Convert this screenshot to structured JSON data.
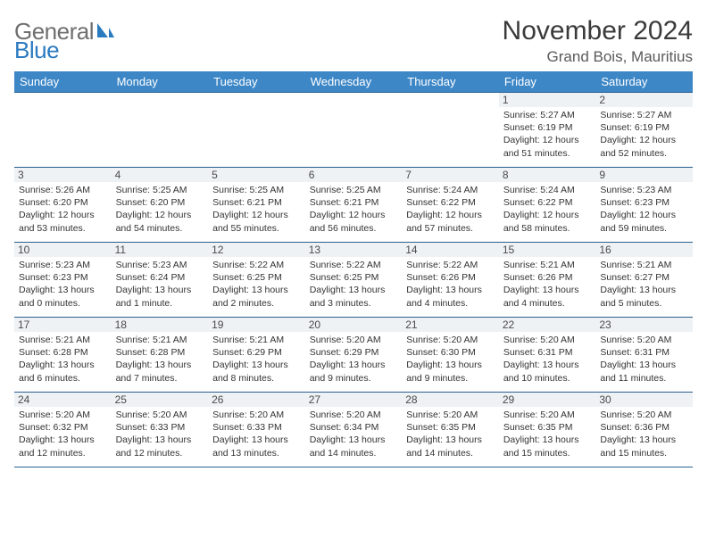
{
  "logo": {
    "word1": "General",
    "word2": "Blue"
  },
  "title": "November 2024",
  "location": "Grand Bois, Mauritius",
  "colors": {
    "header_bg": "#3d87c7",
    "header_text": "#ffffff",
    "cell_border": "#2a5f8f",
    "daynum_bg": "#eef2f5",
    "logo_gray": "#6f6f6f",
    "logo_blue": "#2a7ac0",
    "title_color": "#3a3a3a"
  },
  "day_headers": [
    "Sunday",
    "Monday",
    "Tuesday",
    "Wednesday",
    "Thursday",
    "Friday",
    "Saturday"
  ],
  "weeks": [
    [
      {
        "empty": true
      },
      {
        "empty": true
      },
      {
        "empty": true
      },
      {
        "empty": true
      },
      {
        "empty": true
      },
      {
        "num": "1",
        "l1": "Sunrise: 5:27 AM",
        "l2": "Sunset: 6:19 PM",
        "l3": "Daylight: 12 hours",
        "l4": "and 51 minutes."
      },
      {
        "num": "2",
        "l1": "Sunrise: 5:27 AM",
        "l2": "Sunset: 6:19 PM",
        "l3": "Daylight: 12 hours",
        "l4": "and 52 minutes."
      }
    ],
    [
      {
        "num": "3",
        "l1": "Sunrise: 5:26 AM",
        "l2": "Sunset: 6:20 PM",
        "l3": "Daylight: 12 hours",
        "l4": "and 53 minutes."
      },
      {
        "num": "4",
        "l1": "Sunrise: 5:25 AM",
        "l2": "Sunset: 6:20 PM",
        "l3": "Daylight: 12 hours",
        "l4": "and 54 minutes."
      },
      {
        "num": "5",
        "l1": "Sunrise: 5:25 AM",
        "l2": "Sunset: 6:21 PM",
        "l3": "Daylight: 12 hours",
        "l4": "and 55 minutes."
      },
      {
        "num": "6",
        "l1": "Sunrise: 5:25 AM",
        "l2": "Sunset: 6:21 PM",
        "l3": "Daylight: 12 hours",
        "l4": "and 56 minutes."
      },
      {
        "num": "7",
        "l1": "Sunrise: 5:24 AM",
        "l2": "Sunset: 6:22 PM",
        "l3": "Daylight: 12 hours",
        "l4": "and 57 minutes."
      },
      {
        "num": "8",
        "l1": "Sunrise: 5:24 AM",
        "l2": "Sunset: 6:22 PM",
        "l3": "Daylight: 12 hours",
        "l4": "and 58 minutes."
      },
      {
        "num": "9",
        "l1": "Sunrise: 5:23 AM",
        "l2": "Sunset: 6:23 PM",
        "l3": "Daylight: 12 hours",
        "l4": "and 59 minutes."
      }
    ],
    [
      {
        "num": "10",
        "l1": "Sunrise: 5:23 AM",
        "l2": "Sunset: 6:23 PM",
        "l3": "Daylight: 13 hours",
        "l4": "and 0 minutes."
      },
      {
        "num": "11",
        "l1": "Sunrise: 5:23 AM",
        "l2": "Sunset: 6:24 PM",
        "l3": "Daylight: 13 hours",
        "l4": "and 1 minute."
      },
      {
        "num": "12",
        "l1": "Sunrise: 5:22 AM",
        "l2": "Sunset: 6:25 PM",
        "l3": "Daylight: 13 hours",
        "l4": "and 2 minutes."
      },
      {
        "num": "13",
        "l1": "Sunrise: 5:22 AM",
        "l2": "Sunset: 6:25 PM",
        "l3": "Daylight: 13 hours",
        "l4": "and 3 minutes."
      },
      {
        "num": "14",
        "l1": "Sunrise: 5:22 AM",
        "l2": "Sunset: 6:26 PM",
        "l3": "Daylight: 13 hours",
        "l4": "and 4 minutes."
      },
      {
        "num": "15",
        "l1": "Sunrise: 5:21 AM",
        "l2": "Sunset: 6:26 PM",
        "l3": "Daylight: 13 hours",
        "l4": "and 4 minutes."
      },
      {
        "num": "16",
        "l1": "Sunrise: 5:21 AM",
        "l2": "Sunset: 6:27 PM",
        "l3": "Daylight: 13 hours",
        "l4": "and 5 minutes."
      }
    ],
    [
      {
        "num": "17",
        "l1": "Sunrise: 5:21 AM",
        "l2": "Sunset: 6:28 PM",
        "l3": "Daylight: 13 hours",
        "l4": "and 6 minutes."
      },
      {
        "num": "18",
        "l1": "Sunrise: 5:21 AM",
        "l2": "Sunset: 6:28 PM",
        "l3": "Daylight: 13 hours",
        "l4": "and 7 minutes."
      },
      {
        "num": "19",
        "l1": "Sunrise: 5:21 AM",
        "l2": "Sunset: 6:29 PM",
        "l3": "Daylight: 13 hours",
        "l4": "and 8 minutes."
      },
      {
        "num": "20",
        "l1": "Sunrise: 5:20 AM",
        "l2": "Sunset: 6:29 PM",
        "l3": "Daylight: 13 hours",
        "l4": "and 9 minutes."
      },
      {
        "num": "21",
        "l1": "Sunrise: 5:20 AM",
        "l2": "Sunset: 6:30 PM",
        "l3": "Daylight: 13 hours",
        "l4": "and 9 minutes."
      },
      {
        "num": "22",
        "l1": "Sunrise: 5:20 AM",
        "l2": "Sunset: 6:31 PM",
        "l3": "Daylight: 13 hours",
        "l4": "and 10 minutes."
      },
      {
        "num": "23",
        "l1": "Sunrise: 5:20 AM",
        "l2": "Sunset: 6:31 PM",
        "l3": "Daylight: 13 hours",
        "l4": "and 11 minutes."
      }
    ],
    [
      {
        "num": "24",
        "l1": "Sunrise: 5:20 AM",
        "l2": "Sunset: 6:32 PM",
        "l3": "Daylight: 13 hours",
        "l4": "and 12 minutes."
      },
      {
        "num": "25",
        "l1": "Sunrise: 5:20 AM",
        "l2": "Sunset: 6:33 PM",
        "l3": "Daylight: 13 hours",
        "l4": "and 12 minutes."
      },
      {
        "num": "26",
        "l1": "Sunrise: 5:20 AM",
        "l2": "Sunset: 6:33 PM",
        "l3": "Daylight: 13 hours",
        "l4": "and 13 minutes."
      },
      {
        "num": "27",
        "l1": "Sunrise: 5:20 AM",
        "l2": "Sunset: 6:34 PM",
        "l3": "Daylight: 13 hours",
        "l4": "and 14 minutes."
      },
      {
        "num": "28",
        "l1": "Sunrise: 5:20 AM",
        "l2": "Sunset: 6:35 PM",
        "l3": "Daylight: 13 hours",
        "l4": "and 14 minutes."
      },
      {
        "num": "29",
        "l1": "Sunrise: 5:20 AM",
        "l2": "Sunset: 6:35 PM",
        "l3": "Daylight: 13 hours",
        "l4": "and 15 minutes."
      },
      {
        "num": "30",
        "l1": "Sunrise: 5:20 AM",
        "l2": "Sunset: 6:36 PM",
        "l3": "Daylight: 13 hours",
        "l4": "and 15 minutes."
      }
    ]
  ]
}
